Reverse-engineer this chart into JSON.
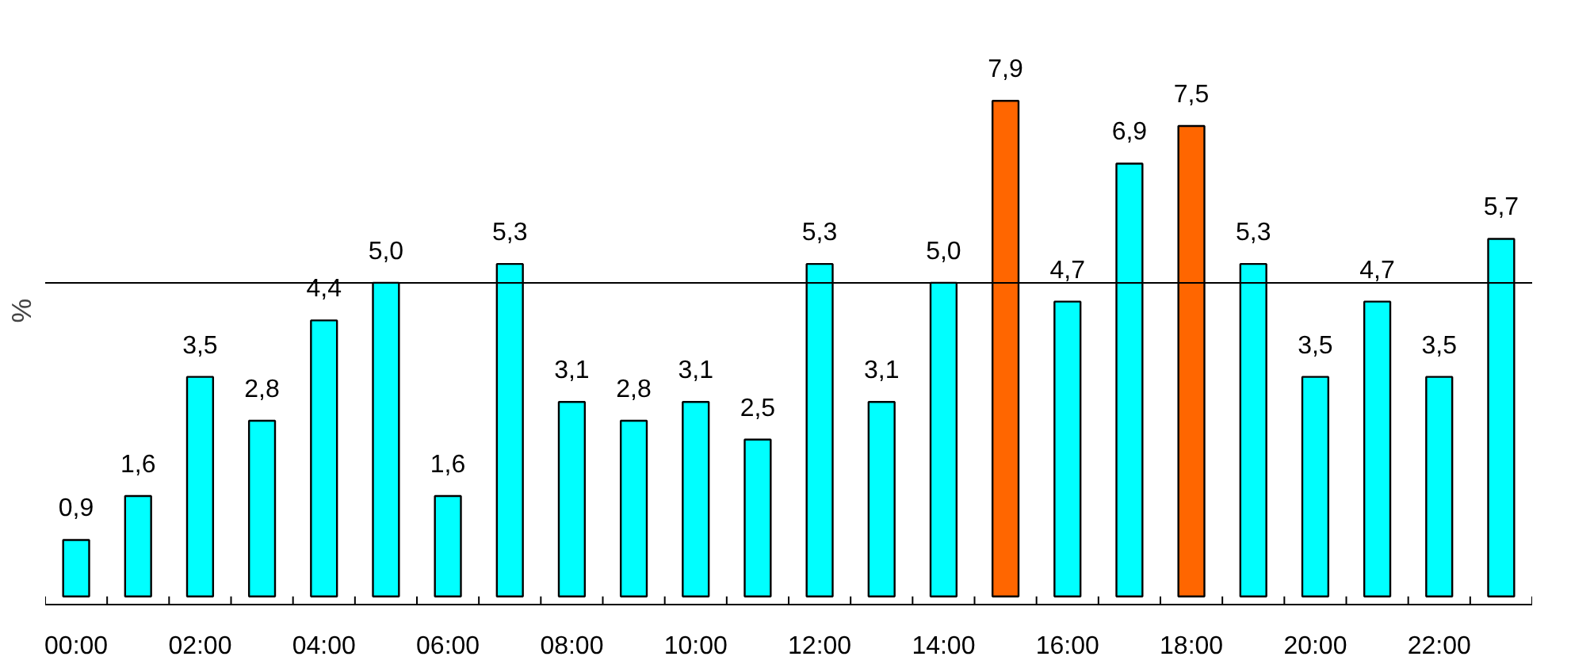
{
  "chart_data": {
    "type": "bar",
    "ylabel": "%",
    "categories": [
      "00:00",
      null,
      "02:00",
      null,
      "04:00",
      null,
      "06:00",
      null,
      "08:00",
      null,
      "10:00",
      null,
      "12:00",
      null,
      "14:00",
      null,
      "16:00",
      null,
      "18:00",
      null,
      "20:00",
      null,
      "22:00",
      null
    ],
    "values": [
      0.9,
      1.6,
      3.5,
      2.8,
      4.4,
      5.0,
      1.6,
      5.3,
      3.1,
      2.8,
      3.1,
      2.5,
      5.3,
      3.1,
      5.0,
      7.9,
      4.7,
      6.9,
      7.5,
      5.3,
      3.5,
      4.7,
      3.5,
      5.7
    ],
    "value_labels": [
      "0,9",
      "1,6",
      "3,5",
      "2,8",
      "4,4",
      "5,0",
      "1,6",
      "5,3",
      "3,1",
      "2,8",
      "3,1",
      "2,5",
      "5,3",
      "3,1",
      "5,0",
      "7,9",
      "4,7",
      "6,9",
      "7,5",
      "5,3",
      "3,5",
      "4,7",
      "3,5",
      "5,7"
    ],
    "colors": [
      "#00ffff",
      "#00ffff",
      "#00ffff",
      "#00ffff",
      "#00ffff",
      "#00ffff",
      "#00ffff",
      "#00ffff",
      "#00ffff",
      "#00ffff",
      "#00ffff",
      "#00ffff",
      "#00ffff",
      "#00ffff",
      "#00ffff",
      "#ff6600",
      "#00ffff",
      "#00ffff",
      "#ff6600",
      "#00ffff",
      "#00ffff",
      "#00ffff",
      "#00ffff",
      "#00ffff"
    ],
    "ref_lines": [
      {
        "axis": "y",
        "value": 5
      }
    ],
    "tick_labels": "x",
    "grid": false
  }
}
